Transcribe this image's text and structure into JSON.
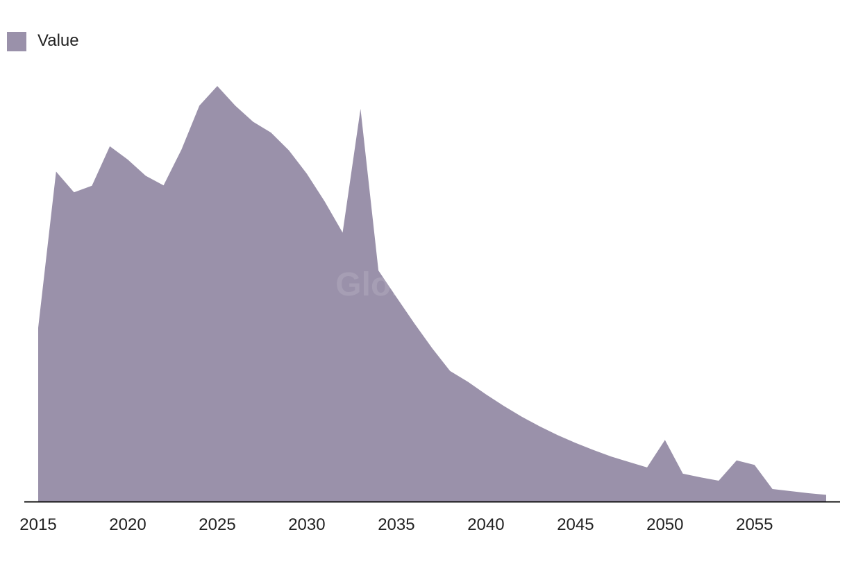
{
  "watermark": "GlobalData",
  "chart_data": {
    "type": "area",
    "title": "",
    "xlabel": "",
    "ylabel": "",
    "legend": {
      "placement": "top-left",
      "entries": [
        "Value"
      ]
    },
    "grid": false,
    "y_axis_visible": false,
    "xlim": [
      2015,
      2059
    ],
    "ylim": [
      0,
      100
    ],
    "x_ticks": [
      2015,
      2020,
      2025,
      2030,
      2035,
      2040,
      2045,
      2050,
      2055
    ],
    "x_tick_labels": [
      "2015",
      "2020",
      "2025",
      "2030",
      "2035",
      "2040",
      "2045",
      "2050",
      "2055"
    ],
    "series": [
      {
        "name": "Value",
        "color": "#9a91aa",
        "x": [
          2015,
          2016,
          2017,
          2018,
          2019,
          2020,
          2021,
          2022,
          2023,
          2024,
          2025,
          2026,
          2027,
          2028,
          2029,
          2030,
          2031,
          2032,
          2033,
          2034,
          2035,
          2036,
          2037,
          2038,
          2039,
          2040,
          2041,
          2042,
          2043,
          2044,
          2045,
          2046,
          2047,
          2048,
          2049,
          2050,
          2051,
          2052,
          2053,
          2054,
          2055,
          2056,
          2057,
          2058,
          2059
        ],
        "values": [
          41.8,
          79.4,
          74.4,
          76.0,
          85.5,
          82.3,
          78.4,
          76.1,
          84.7,
          95.3,
          100.0,
          95.3,
          91.4,
          88.8,
          84.5,
          78.9,
          72.2,
          64.7,
          94.5,
          55.6,
          49.2,
          42.9,
          36.9,
          31.4,
          28.8,
          25.8,
          23.0,
          20.4,
          18.1,
          16.0,
          14.1,
          12.4,
          10.8,
          9.5,
          8.2,
          14.8,
          6.7,
          5.8,
          5.0,
          9.9,
          8.8,
          3.0,
          2.5,
          2.0,
          1.6
        ]
      }
    ]
  }
}
